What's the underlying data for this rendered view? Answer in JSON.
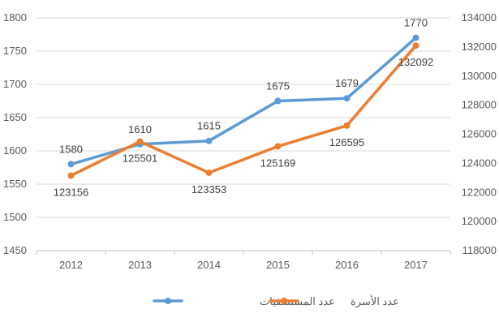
{
  "chart_data": {
    "type": "line",
    "title": "",
    "grid": true,
    "legend_position": "bottom",
    "categories": [
      "2012",
      "2013",
      "2014",
      "2015",
      "2016",
      "2017"
    ],
    "y_left": {
      "min": 1450,
      "max": 1800,
      "step": 50,
      "ticks": [
        "1450",
        "1500",
        "1550",
        "1600",
        "1650",
        "1700",
        "1750",
        "1800"
      ]
    },
    "y_right": {
      "min": 118000,
      "max": 134000,
      "step": 2000,
      "ticks": [
        "118000",
        "120000",
        "122000",
        "124000",
        "126000",
        "128000",
        "130000",
        "132000",
        "134000"
      ]
    },
    "series": [
      {
        "name": "عدد المستشفيات",
        "axis": "left",
        "color": "#5b9bd5",
        "values": [
          1580,
          1610,
          1615,
          1675,
          1679,
          1770
        ],
        "labels": [
          "1580",
          "1610",
          "1615",
          "1675",
          "1679",
          "1770"
        ]
      },
      {
        "name": "عدد الأسرة",
        "axis": "right",
        "color": "#ed7d31",
        "values": [
          123156,
          125501,
          123353,
          125169,
          126595,
          132092
        ],
        "labels": [
          "123156",
          "125501",
          "123353",
          "125169",
          "126595",
          "132092"
        ]
      }
    ]
  }
}
